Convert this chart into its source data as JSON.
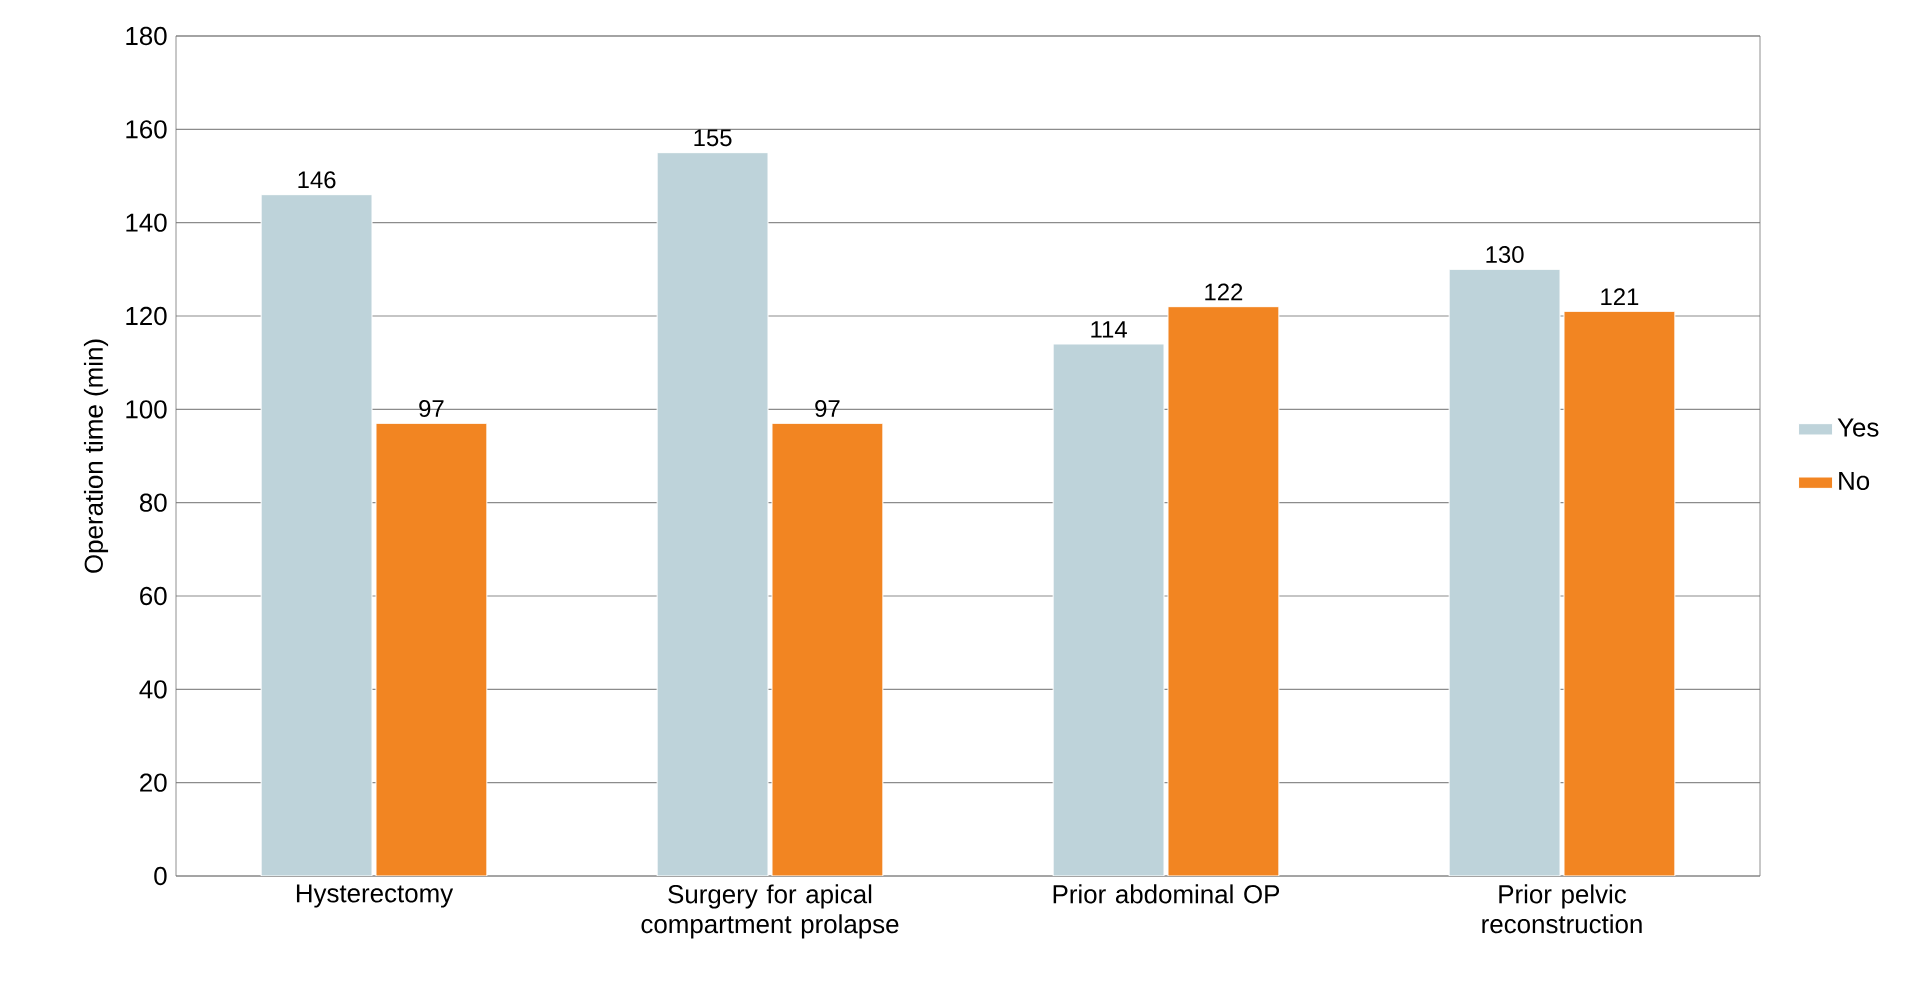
{
  "chart_data": {
    "type": "bar",
    "ylabel": "Operation time (min)",
    "categories": [
      "Hysterectomy",
      "Surgery for apical compartment prolapse",
      "Prior abdominal OP",
      "Prior pelvic reconstruction"
    ],
    "series": [
      {
        "name": "Yes",
        "color": "#bed3da",
        "values": [
          146,
          155,
          114,
          130
        ]
      },
      {
        "name": "No",
        "color": "#f28522",
        "values": [
          97,
          97,
          122,
          121
        ]
      }
    ],
    "ylim": [
      0,
      180
    ],
    "yticks": [
      0,
      20,
      40,
      60,
      80,
      100,
      120,
      140,
      160,
      180
    ],
    "grid": "y",
    "legend": "right",
    "data_labels": true
  }
}
